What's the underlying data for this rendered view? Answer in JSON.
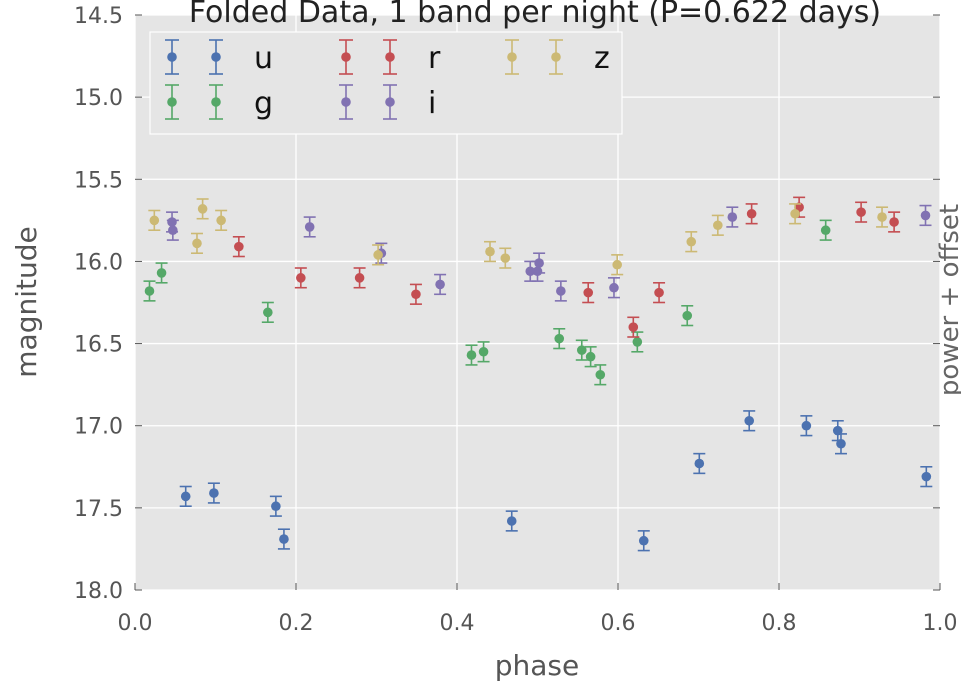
{
  "chart_data": {
    "type": "scatter",
    "title": "Folded Data, 1 band per night (P=0.622 days)",
    "xlabel": "phase",
    "ylabel": "magnitude",
    "right_label": "power + offset",
    "xlim": [
      0.0,
      1.0
    ],
    "ylim": [
      18.0,
      14.5
    ],
    "y_inverted": true,
    "grid": true,
    "legend_position": "top-left",
    "x_ticks": [
      "0.0",
      "0.2",
      "0.4",
      "0.6",
      "0.8",
      "1.0"
    ],
    "y_ticks": [
      "14.5",
      "15.0",
      "15.5",
      "16.0",
      "16.5",
      "17.0",
      "17.5",
      "18.0"
    ],
    "errorbar_half_width_mag": 0.06,
    "series": [
      {
        "name": "u",
        "color": "#4c72b0",
        "points": [
          [
            0.063,
            17.43
          ],
          [
            0.098,
            17.41
          ],
          [
            0.175,
            17.49
          ],
          [
            0.185,
            17.69
          ],
          [
            0.468,
            17.58
          ],
          [
            0.632,
            17.7
          ],
          [
            0.701,
            17.23
          ],
          [
            0.763,
            16.97
          ],
          [
            0.834,
            17.0
          ],
          [
            0.873,
            17.03
          ],
          [
            0.877,
            17.11
          ],
          [
            0.983,
            17.31
          ]
        ]
      },
      {
        "name": "g",
        "color": "#55a868",
        "points": [
          [
            0.018,
            16.18
          ],
          [
            0.033,
            16.07
          ],
          [
            0.165,
            16.31
          ],
          [
            0.418,
            16.57
          ],
          [
            0.433,
            16.55
          ],
          [
            0.527,
            16.47
          ],
          [
            0.555,
            16.54
          ],
          [
            0.566,
            16.58
          ],
          [
            0.578,
            16.69
          ],
          [
            0.624,
            16.49
          ],
          [
            0.686,
            16.33
          ],
          [
            0.858,
            15.81
          ]
        ]
      },
      {
        "name": "r",
        "color": "#c44e52",
        "points": [
          [
            0.129,
            15.91
          ],
          [
            0.206,
            16.1
          ],
          [
            0.279,
            16.1
          ],
          [
            0.349,
            16.2
          ],
          [
            0.563,
            16.19
          ],
          [
            0.619,
            16.4
          ],
          [
            0.651,
            16.19
          ],
          [
            0.766,
            15.71
          ],
          [
            0.825,
            15.67
          ],
          [
            0.902,
            15.7
          ],
          [
            0.943,
            15.76
          ]
        ]
      },
      {
        "name": "i",
        "color": "#8172b2",
        "points": [
          [
            0.046,
            15.76
          ],
          [
            0.047,
            15.81
          ],
          [
            0.217,
            15.79
          ],
          [
            0.306,
            15.95
          ],
          [
            0.379,
            16.14
          ],
          [
            0.491,
            16.06
          ],
          [
            0.5,
            16.06
          ],
          [
            0.502,
            16.01
          ],
          [
            0.529,
            16.18
          ],
          [
            0.595,
            16.16
          ],
          [
            0.742,
            15.73
          ],
          [
            0.982,
            15.72
          ]
        ]
      },
      {
        "name": "z",
        "color": "#ccb974",
        "points": [
          [
            0.024,
            15.75
          ],
          [
            0.077,
            15.89
          ],
          [
            0.084,
            15.68
          ],
          [
            0.107,
            15.75
          ],
          [
            0.302,
            15.96
          ],
          [
            0.441,
            15.94
          ],
          [
            0.46,
            15.98
          ],
          [
            0.599,
            16.02
          ],
          [
            0.691,
            15.88
          ],
          [
            0.724,
            15.78
          ],
          [
            0.82,
            15.71
          ],
          [
            0.928,
            15.73
          ]
        ]
      }
    ]
  }
}
